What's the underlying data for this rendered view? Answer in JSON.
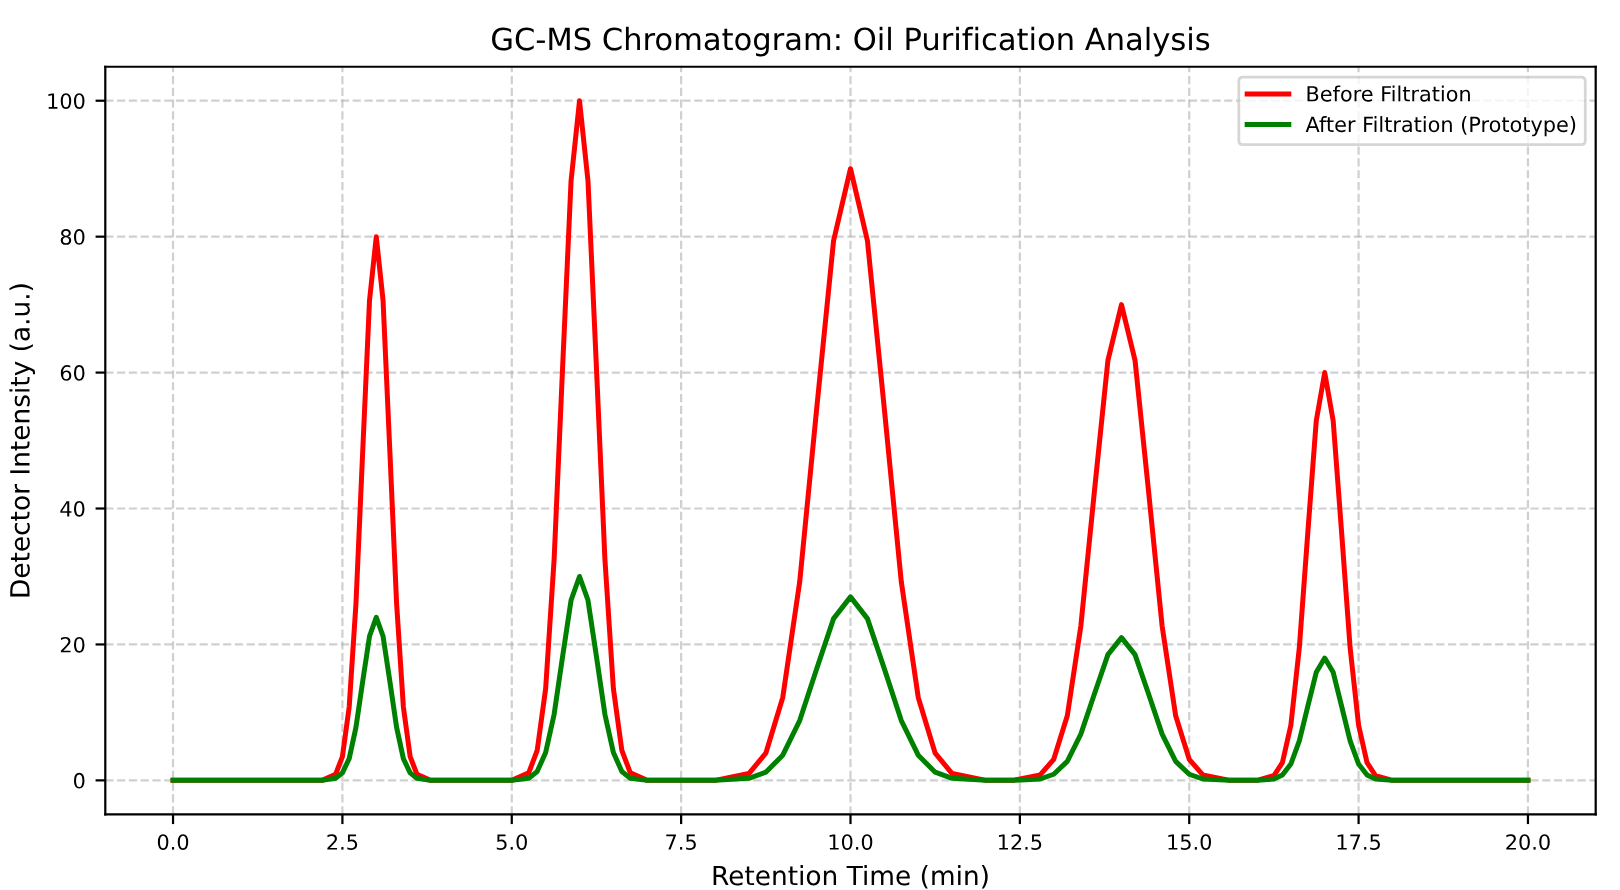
{
  "chart_data": {
    "type": "line",
    "title": "GC-MS Chromatogram: Oil Purification Analysis",
    "xlabel": "Retention Time (min)",
    "ylabel": "Detector Intensity (a.u.)",
    "x": [
      0,
      2.2,
      2.4,
      2.5,
      2.6,
      2.7,
      2.8,
      2.9,
      3.0,
      3.1,
      3.2,
      3.3,
      3.4,
      3.5,
      3.6,
      3.8,
      5.0,
      5.25,
      5.375,
      5.5,
      5.625,
      5.75,
      5.875,
      6.0,
      6.125,
      6.25,
      6.375,
      6.5,
      6.625,
      6.75,
      7.0,
      8.0,
      8.5,
      8.75,
      9.0,
      9.25,
      9.5,
      9.75,
      10.0,
      10.25,
      10.5,
      10.75,
      11.0,
      11.25,
      11.5,
      12.0,
      12.4,
      12.8,
      13.0,
      13.2,
      13.4,
      13.6,
      13.8,
      14.0,
      14.2,
      14.4,
      14.6,
      14.8,
      15.0,
      15.2,
      15.6,
      16.0,
      16.25,
      16.375,
      16.5,
      16.625,
      16.75,
      16.875,
      17.0,
      17.125,
      17.25,
      17.375,
      17.5,
      17.625,
      17.75,
      18.0,
      20
    ],
    "series": [
      {
        "name": "Before Filtration",
        "color": "#ff0000",
        "values": [
          0,
          0,
          0.9,
          3.5,
          10.8,
          26,
          48.5,
          70.6,
          80,
          70.6,
          48.5,
          26,
          10.8,
          3.5,
          0.9,
          0,
          0,
          1.1,
          4.4,
          13.5,
          32.5,
          60.7,
          88.2,
          100,
          88.2,
          60.7,
          32.5,
          13.5,
          4.4,
          1.1,
          0,
          0,
          1,
          4,
          12.2,
          29.2,
          54.6,
          79.4,
          90,
          79.4,
          54.6,
          29.2,
          12.2,
          4,
          1,
          0,
          0,
          0.8,
          3.1,
          9.5,
          22.7,
          42.5,
          61.8,
          70,
          61.8,
          42.5,
          22.7,
          9.5,
          3.1,
          0.8,
          0,
          0,
          0.7,
          2.6,
          8.1,
          19.5,
          36.4,
          52.9,
          60,
          52.9,
          36.4,
          19.5,
          8.1,
          2.6,
          0.7,
          0,
          0
        ]
      },
      {
        "name": "After Filtration (Prototype)",
        "color": "#008000",
        "values": [
          0,
          0,
          0.3,
          1.1,
          3.2,
          7.8,
          14.6,
          21.2,
          24,
          21.2,
          14.6,
          7.8,
          3.2,
          1.1,
          0.3,
          0,
          0,
          0.3,
          1.3,
          4.1,
          9.7,
          18.2,
          26.5,
          30,
          26.5,
          18.2,
          9.7,
          4.1,
          1.3,
          0.3,
          0,
          0,
          0.3,
          1.2,
          3.7,
          8.8,
          16.4,
          23.8,
          27,
          23.8,
          16.4,
          8.8,
          3.7,
          1.2,
          0.3,
          0,
          0,
          0.2,
          0.9,
          2.8,
          6.8,
          12.7,
          18.5,
          21,
          18.5,
          12.7,
          6.8,
          2.8,
          0.9,
          0.2,
          0,
          0,
          0.2,
          0.8,
          2.4,
          5.8,
          10.9,
          15.9,
          18,
          15.9,
          10.9,
          5.8,
          2.4,
          0.8,
          0.2,
          0,
          0
        ]
      }
    ],
    "xlim": [
      -1,
      21
    ],
    "ylim": [
      -5,
      105
    ],
    "xticks": [
      {
        "value": 0,
        "label": "0.0"
      },
      {
        "value": 2.5,
        "label": "2.5"
      },
      {
        "value": 5,
        "label": "5.0"
      },
      {
        "value": 7.5,
        "label": "7.5"
      },
      {
        "value": 10,
        "label": "10.0"
      },
      {
        "value": 12.5,
        "label": "12.5"
      },
      {
        "value": 15,
        "label": "15.0"
      },
      {
        "value": 17.5,
        "label": "17.5"
      },
      {
        "value": 20,
        "label": "20.0"
      }
    ],
    "yticks": [
      0,
      20,
      40,
      60,
      80,
      100
    ],
    "grid": true,
    "legend": "top right",
    "marker": "none",
    "line_style": "solid"
  }
}
